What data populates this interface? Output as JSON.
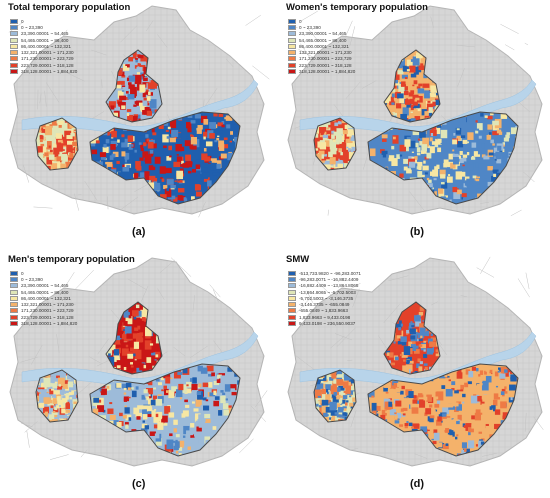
{
  "panels": [
    {
      "title": "Total temporary population",
      "label": "(a)",
      "scheme": "total",
      "legend": [
        {
          "text": "0",
          "color": "#1f5fae"
        },
        {
          "text": "0 ~ 23,390",
          "color": "#4f86c6"
        },
        {
          "text": "23,390.00001 ~ 54,465",
          "color": "#9dbbd9"
        },
        {
          "text": "54,465.00001 ~ 86,400",
          "color": "#dfe6b8"
        },
        {
          "text": "86,400.00001 ~ 132,321",
          "color": "#f7e7a3"
        },
        {
          "text": "132,321.00001 ~ 171,230",
          "color": "#f4b26b"
        },
        {
          "text": "171,230.00001 ~ 223,729",
          "color": "#ee7a45"
        },
        {
          "text": "223,729.00001 ~ 318,128",
          "color": "#e2412a"
        },
        {
          "text": "318,128.00001 ~ 1,884,820",
          "color": "#c91616"
        }
      ]
    },
    {
      "title": "Women's temporary population",
      "label": "(b)",
      "scheme": "women",
      "legend": [
        {
          "text": "0",
          "color": "#1f5fae"
        },
        {
          "text": "0 ~ 23,390",
          "color": "#4f86c6"
        },
        {
          "text": "23,390.00001 ~ 54,465",
          "color": "#9dbbd9"
        },
        {
          "text": "54,465.00001 ~ 86,400",
          "color": "#dfe6b8"
        },
        {
          "text": "86,400.00001 ~ 132,321",
          "color": "#f7e7a3"
        },
        {
          "text": "132,321.00001 ~ 171,230",
          "color": "#f4b26b"
        },
        {
          "text": "171,230.00001 ~ 223,729",
          "color": "#ee7a45"
        },
        {
          "text": "223,729.00001 ~ 318,128",
          "color": "#e2412a"
        },
        {
          "text": "318,128.00001 ~ 1,884,820",
          "color": "#c91616"
        }
      ]
    },
    {
      "title": "Men's temporary population",
      "label": "(c)",
      "scheme": "men",
      "legend": [
        {
          "text": "0",
          "color": "#1f5fae"
        },
        {
          "text": "0 ~ 23,390",
          "color": "#4f86c6"
        },
        {
          "text": "23,390.00001 ~ 54,465",
          "color": "#9dbbd9"
        },
        {
          "text": "54,465.00001 ~ 86,400",
          "color": "#dfe6b8"
        },
        {
          "text": "86,400.00001 ~ 132,321",
          "color": "#f7e7a3"
        },
        {
          "text": "132,321.00001 ~ 171,230",
          "color": "#f4b26b"
        },
        {
          "text": "171,230.00001 ~ 223,729",
          "color": "#ee7a45"
        },
        {
          "text": "223,729.00001 ~ 318,128",
          "color": "#e2412a"
        },
        {
          "text": "318,128.00001 ~ 1,884,820",
          "color": "#c91616"
        }
      ]
    },
    {
      "title": "SMW",
      "label": "(d)",
      "scheme": "smw",
      "legend": [
        {
          "text": "-513,733.9820 ~ -96,283.0071",
          "color": "#1f5fae"
        },
        {
          "text": "-96,283.0071 ~ -16,882.4409",
          "color": "#4f86c6"
        },
        {
          "text": "-16,882.4409 ~ -13,864.8065",
          "color": "#9dbbd9"
        },
        {
          "text": "-13,864.8065 ~ -5,702.5003",
          "color": "#dfe6b8"
        },
        {
          "text": "-5,702.5003 ~ -3,146.3735",
          "color": "#f7e7a3"
        },
        {
          "text": "-3,146.3735 ~ -655.0849",
          "color": "#f4b26b"
        },
        {
          "text": "-655.0849 ~ 1,833.9663",
          "color": "#ee7a45"
        },
        {
          "text": "1,833.9663 ~ 9,433.0198",
          "color": "#e2412a"
        },
        {
          "text": "9,433.0198 ~ 236,550.9037",
          "color": "#c91616"
        }
      ]
    }
  ]
}
